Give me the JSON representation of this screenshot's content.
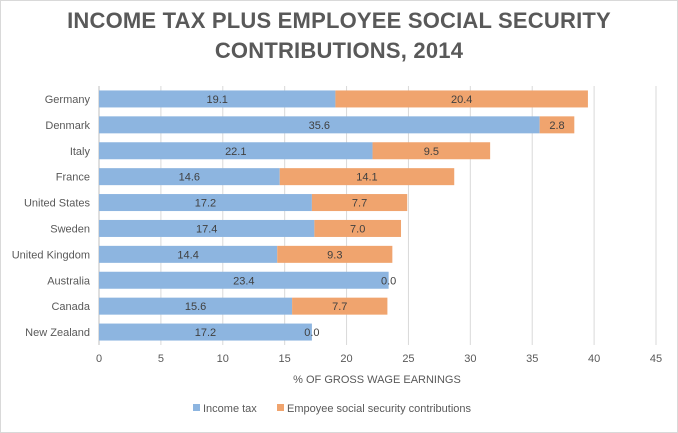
{
  "chart_data": {
    "type": "bar",
    "orientation": "horizontal",
    "stacked": true,
    "title": "INCOME TAX PLUS EMPLOYEE SOCIAL SECURITY CONTRIBUTIONS, 2014",
    "title_lines": [
      "INCOME TAX PLUS EMPLOYEE SOCIAL SECURITY",
      "CONTRIBUTIONS, 2014"
    ],
    "xlabel": "% OF GROSS WAGE EARNINGS",
    "ylabel": "",
    "xlim": [
      0,
      45
    ],
    "xticks": [
      0,
      5,
      10,
      15,
      20,
      25,
      30,
      35,
      40,
      45
    ],
    "grid": true,
    "legend_position": "bottom",
    "categories": [
      "Germany",
      "Denmark",
      "Italy",
      "France",
      "United States",
      "Sweden",
      "United Kingdom",
      "Australia",
      "Canada",
      "New Zealand"
    ],
    "series": [
      {
        "name": "Income tax",
        "color": "#8db5e0",
        "values": [
          19.1,
          35.6,
          22.1,
          14.6,
          17.2,
          17.4,
          14.4,
          23.4,
          15.6,
          17.2
        ]
      },
      {
        "name": "Empoyee social security contributions",
        "color": "#f0a46e",
        "values": [
          20.4,
          2.8,
          9.5,
          14.1,
          7.7,
          7.0,
          9.3,
          0.0,
          7.7,
          0.0
        ]
      }
    ]
  }
}
